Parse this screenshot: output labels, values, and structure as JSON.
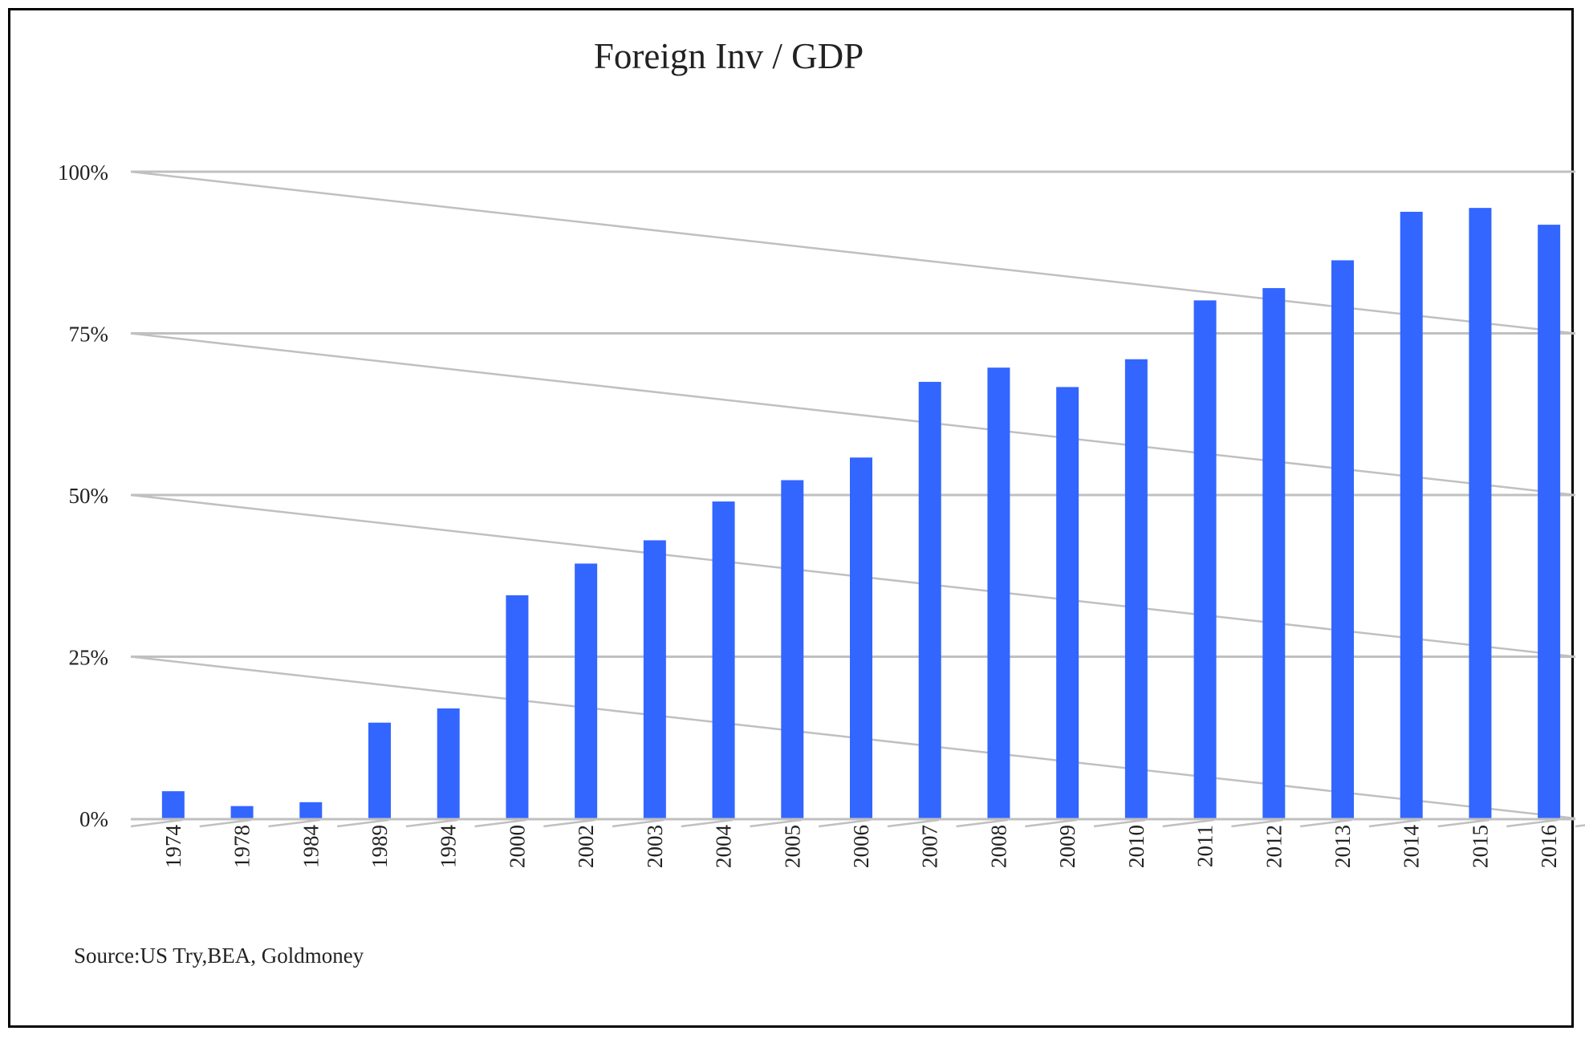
{
  "chart_data": {
    "type": "bar",
    "title": "Foreign Inv /  GDP",
    "categories": [
      "1974",
      "1978",
      "1984",
      "1989",
      "1994",
      "2000",
      "2002",
      "2003",
      "2004",
      "2005",
      "2006",
      "2007",
      "2008",
      "2009",
      "2010",
      "2011",
      "2012",
      "2013",
      "2014",
      "2015",
      "2016"
    ],
    "series": [
      {
        "values": [
          4.2,
          1.9,
          2.5,
          14.8,
          17.0,
          34.5,
          39.4,
          43.0,
          49.0,
          52.3,
          55.8,
          67.5,
          69.7,
          66.7,
          71.0,
          80.1,
          82.0,
          86.3,
          93.8,
          94.4,
          91.8
        ]
      }
    ],
    "ylim": [
      0,
      100
    ],
    "yticks": [
      {
        "value": 0,
        "label": "0%"
      },
      {
        "value": 25,
        "label": "25%"
      },
      {
        "value": 50,
        "label": "50%"
      },
      {
        "value": 75,
        "label": "75%"
      },
      {
        "value": 100,
        "label": "100%"
      }
    ],
    "grid": true,
    "legend": "none",
    "colors": {
      "bar": "#3366ff",
      "grid": "#c0c0c0",
      "text": "#222222",
      "border": "#000000"
    },
    "source_note": "Source:US Try,BEA, Goldmoney"
  }
}
